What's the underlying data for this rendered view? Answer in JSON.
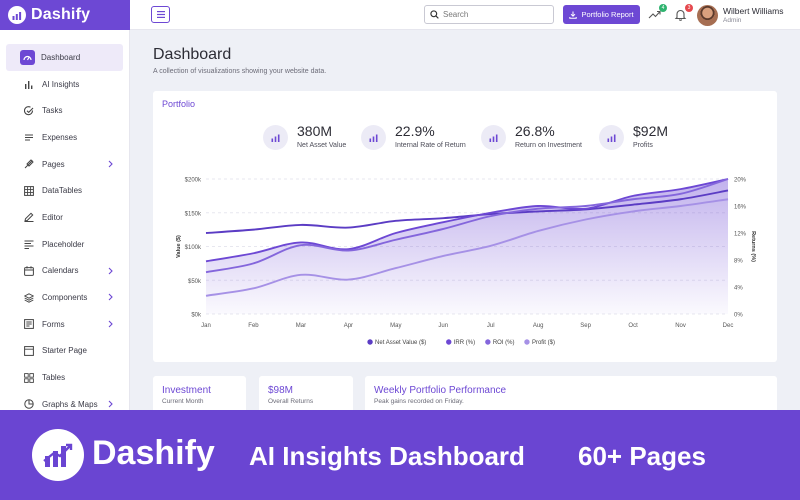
{
  "app": {
    "brand": "Dashify"
  },
  "header": {
    "search_placeholder": "Search",
    "report_button": "Portfolio Report",
    "trend_badge": "4",
    "notif_badge": "3",
    "user_name": "Wilbert Williams",
    "user_role": "Admin"
  },
  "sidebar": {
    "items": [
      {
        "label": "Dashboard",
        "icon": "dashboard-icon",
        "active": true,
        "has_submenu": false
      },
      {
        "label": "AI Insights",
        "icon": "bar-chart-icon",
        "has_submenu": false
      },
      {
        "label": "Tasks",
        "icon": "checklist-icon",
        "has_submenu": false
      },
      {
        "label": "Expenses",
        "icon": "expenses-icon",
        "has_submenu": false
      },
      {
        "label": "Pages",
        "icon": "pages-icon",
        "has_submenu": true
      },
      {
        "label": "DataTables",
        "icon": "table-icon",
        "has_submenu": false
      },
      {
        "label": "Editor",
        "icon": "pencil-icon",
        "has_submenu": false
      },
      {
        "label": "Placeholder",
        "icon": "placeholder-icon",
        "has_submenu": false
      },
      {
        "label": "Calendars",
        "icon": "calendar-icon",
        "has_submenu": true
      },
      {
        "label": "Components",
        "icon": "layers-icon",
        "has_submenu": true
      },
      {
        "label": "Forms",
        "icon": "forms-icon",
        "has_submenu": true
      },
      {
        "label": "Starter Page",
        "icon": "starter-page-icon",
        "has_submenu": false
      },
      {
        "label": "Tables",
        "icon": "grid-icon",
        "has_submenu": false
      },
      {
        "label": "Graphs & Maps",
        "icon": "graphs-icon",
        "has_submenu": true
      }
    ]
  },
  "main": {
    "title": "Dashboard",
    "subtitle": "A collection of visualizations showing your website data."
  },
  "portfolio": {
    "title": "Portfolio",
    "kpis": [
      {
        "value": "380M",
        "label": "Net Asset Value"
      },
      {
        "value": "22.9%",
        "label": "Internal Rate of Return"
      },
      {
        "value": "26.8%",
        "label": "Return on Investment"
      },
      {
        "value": "$92M",
        "label": "Profits"
      }
    ]
  },
  "chart_data": {
    "type": "line",
    "x": [
      "Jan",
      "Feb",
      "Mar",
      "Apr",
      "May",
      "Jun",
      "Jul",
      "Aug",
      "Sep",
      "Oct",
      "Nov",
      "Dec"
    ],
    "ylabel": "Value ($)",
    "y2label": "Returns (%)",
    "ylim": [
      0,
      200000
    ],
    "y2lim": [
      0,
      20
    ],
    "yticks": [
      "$0k",
      "$50k",
      "$100k",
      "$150k",
      "$200k"
    ],
    "y2ticks": [
      "0%",
      "4%",
      "8%",
      "12%",
      "16%",
      "20%"
    ],
    "legend_position": "bottom",
    "grid": true,
    "series": [
      {
        "name": "Net Asset Value ($)",
        "axis": "left",
        "color": "#5b3cc4",
        "values": [
          120000,
          125000,
          132000,
          128000,
          138000,
          142000,
          148000,
          152000,
          155000,
          162000,
          170000,
          183000
        ]
      },
      {
        "name": "IRR (%)",
        "axis": "right",
        "color": "#6d48d4",
        "area": true,
        "values": [
          7.8,
          9.0,
          10.6,
          9.6,
          12.0,
          13.6,
          15.0,
          16.0,
          15.6,
          17.5,
          18.5,
          20.0
        ]
      },
      {
        "name": "ROI (%)",
        "axis": "right",
        "color": "#8466dc",
        "values": [
          6.2,
          7.5,
          10.2,
          9.4,
          11.0,
          12.6,
          14.5,
          15.6,
          16.0,
          17.0,
          17.8,
          20.0
        ]
      },
      {
        "name": "Profit ($)",
        "axis": "left",
        "color": "#a691e6",
        "values": [
          27000,
          38000,
          58000,
          51000,
          68000,
          86000,
          101000,
          123000,
          140000,
          152000,
          160000,
          170000
        ]
      }
    ]
  },
  "cards": {
    "investment": {
      "title": "Investment",
      "sub": "Current Month"
    },
    "returns": {
      "title": "$98M",
      "sub": "Overall Returns"
    },
    "weekly": {
      "title": "Weekly Portfolio Performance",
      "sub": "Peak gains recorded on Friday."
    }
  },
  "banner": {
    "brand": "Dashify",
    "title": "AI Insights Dashboard",
    "pages": "60+ Pages"
  }
}
